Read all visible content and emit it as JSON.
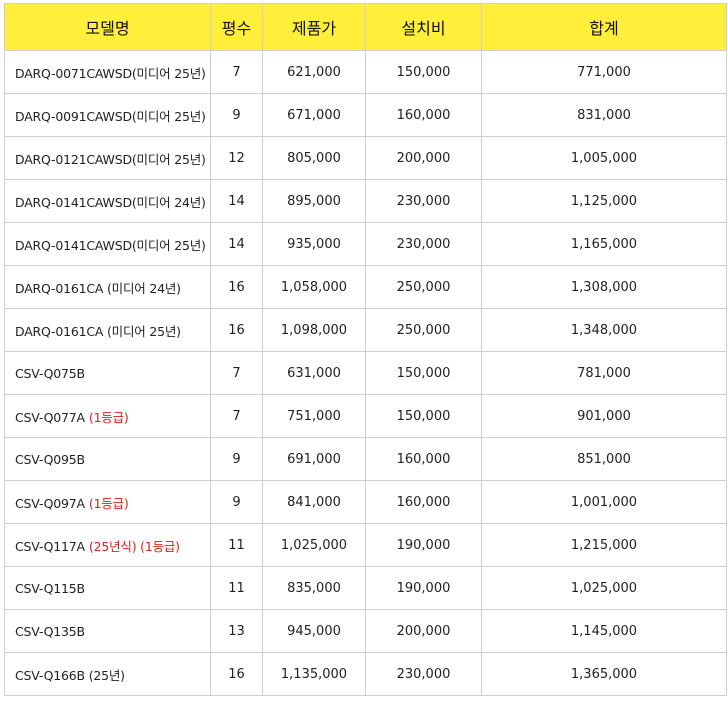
{
  "table": {
    "header": [
      "모델명",
      "평수",
      "제품가",
      "설치비",
      "합계"
    ],
    "rows": [
      {
        "model": "DARQ-0071CAWSD(미디어 25년)",
        "pyeong": "7",
        "price": "621,000",
        "install": "150,000",
        "total": "771,000"
      },
      {
        "model": "DARQ-0091CAWSD(미디어 25년)",
        "pyeong": "9",
        "price": "671,000",
        "install": "160,000",
        "total": "831,000"
      },
      {
        "model": "DARQ-0121CAWSD(미디어 25년)",
        "pyeong": "12",
        "price": "805,000",
        "install": "200,000",
        "total": "1,005,000"
      },
      {
        "model": "DARQ-0141CAWSD(미디어 24년)",
        "pyeong": "14",
        "price": "895,000",
        "install": "230,000",
        "total": "1,125,000"
      },
      {
        "model": "DARQ-0141CAWSD(미디어 25년)",
        "pyeong": "14",
        "price": "935,000",
        "install": "230,000",
        "total": "1,165,000"
      },
      {
        "model": "DARQ-0161CA (미디어 24년)",
        "pyeong": "16",
        "price": "1,058,000",
        "install": "250,000",
        "total": "1,308,000"
      },
      {
        "model": "DARQ-0161CA (미디어 25년)",
        "pyeong": "16",
        "price": "1,098,000",
        "install": "250,000",
        "total": "1,348,000"
      },
      {
        "model": "CSV-Q075B",
        "pyeong": "7",
        "price": "631,000",
        "install": "150,000",
        "total": "781,000"
      },
      {
        "model": "CSV-Q077A",
        "note": "(1등급)",
        "pyeong": "7",
        "price": "751,000",
        "install": "150,000",
        "total": "901,000"
      },
      {
        "model": "CSV-Q095B",
        "pyeong": "9",
        "price": "691,000",
        "install": "160,000",
        "total": "851,000"
      },
      {
        "model": "CSV-Q097A",
        "note": "(1등급)",
        "pyeong": "9",
        "price": "841,000",
        "install": "160,000",
        "total": "1,001,000"
      },
      {
        "model": "CSV-Q117A",
        "note": "(25년식) (1등급)",
        "pyeong": "11",
        "price": "1,025,000",
        "install": "190,000",
        "total": "1,215,000"
      },
      {
        "model": "CSV-Q115B",
        "pyeong": "11",
        "price": "835,000",
        "install": "190,000",
        "total": "1,025,000"
      },
      {
        "model": "CSV-Q135B",
        "pyeong": "13",
        "price": "945,000",
        "install": "200,000",
        "total": "1,145,000"
      },
      {
        "model": "CSV-Q166B (25년)",
        "pyeong": "16",
        "price": "1,135,000",
        "install": "230,000",
        "total": "1,365,000"
      }
    ]
  }
}
